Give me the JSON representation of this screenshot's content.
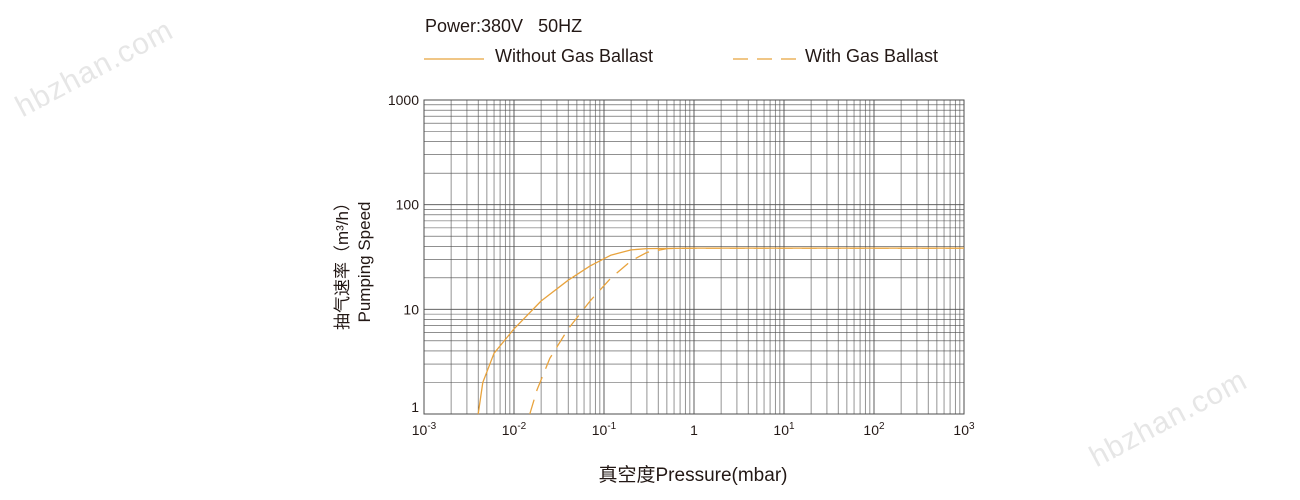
{
  "watermark": "hbzhan.com",
  "chart_data": {
    "type": "line",
    "title": "Power:380V   50HZ",
    "xlabel": "真空度Pressure(mbar)",
    "ylabel_cn": "抽气速率（m³/h）",
    "ylabel_en": "Pumping Speed",
    "x_scale": "log",
    "y_scale": "log",
    "xlim": [
      0.001,
      1000
    ],
    "ylim": [
      1,
      1000
    ],
    "grid": true,
    "legend_position": "top",
    "x_ticks": [
      {
        "value": 0.001,
        "base": "10",
        "exp": "-3"
      },
      {
        "value": 0.01,
        "base": "10",
        "exp": "-2"
      },
      {
        "value": 0.1,
        "base": "10",
        "exp": "-1"
      },
      {
        "value": 1,
        "base": "1",
        "exp": ""
      },
      {
        "value": 10,
        "base": "10",
        "exp": "1"
      },
      {
        "value": 100,
        "base": "10",
        "exp": "2"
      },
      {
        "value": 1000,
        "base": "10",
        "exp": "3"
      }
    ],
    "y_ticks": [
      {
        "value": 1,
        "label": "1"
      },
      {
        "value": 10,
        "label": "10"
      },
      {
        "value": 100,
        "label": "100"
      },
      {
        "value": 1000,
        "label": "1000"
      }
    ],
    "colors": {
      "series": "#e8a33d",
      "grid": "#4d4d4d",
      "text": "#231815"
    },
    "series": [
      {
        "name": "Without Gas Ballast",
        "style": "solid",
        "points": [
          [
            0.004,
            1.0
          ],
          [
            0.0045,
            2.0
          ],
          [
            0.006,
            3.8
          ],
          [
            0.01,
            6.5
          ],
          [
            0.02,
            12
          ],
          [
            0.04,
            19
          ],
          [
            0.07,
            26
          ],
          [
            0.12,
            33
          ],
          [
            0.2,
            37
          ],
          [
            0.3,
            38
          ],
          [
            1,
            38.5
          ],
          [
            10,
            38.5
          ],
          [
            100,
            38.5
          ],
          [
            1000,
            38.5
          ]
        ]
      },
      {
        "name": "With Gas Ballast",
        "style": "dashed",
        "points": [
          [
            0.015,
            1.0
          ],
          [
            0.018,
            1.7
          ],
          [
            0.025,
            3.4
          ],
          [
            0.04,
            6.5
          ],
          [
            0.07,
            12
          ],
          [
            0.12,
            20
          ],
          [
            0.2,
            29
          ],
          [
            0.3,
            35
          ],
          [
            0.5,
            38
          ],
          [
            1,
            38.5
          ],
          [
            10,
            38.5
          ],
          [
            100,
            38.5
          ],
          [
            1000,
            38.5
          ]
        ]
      }
    ]
  }
}
